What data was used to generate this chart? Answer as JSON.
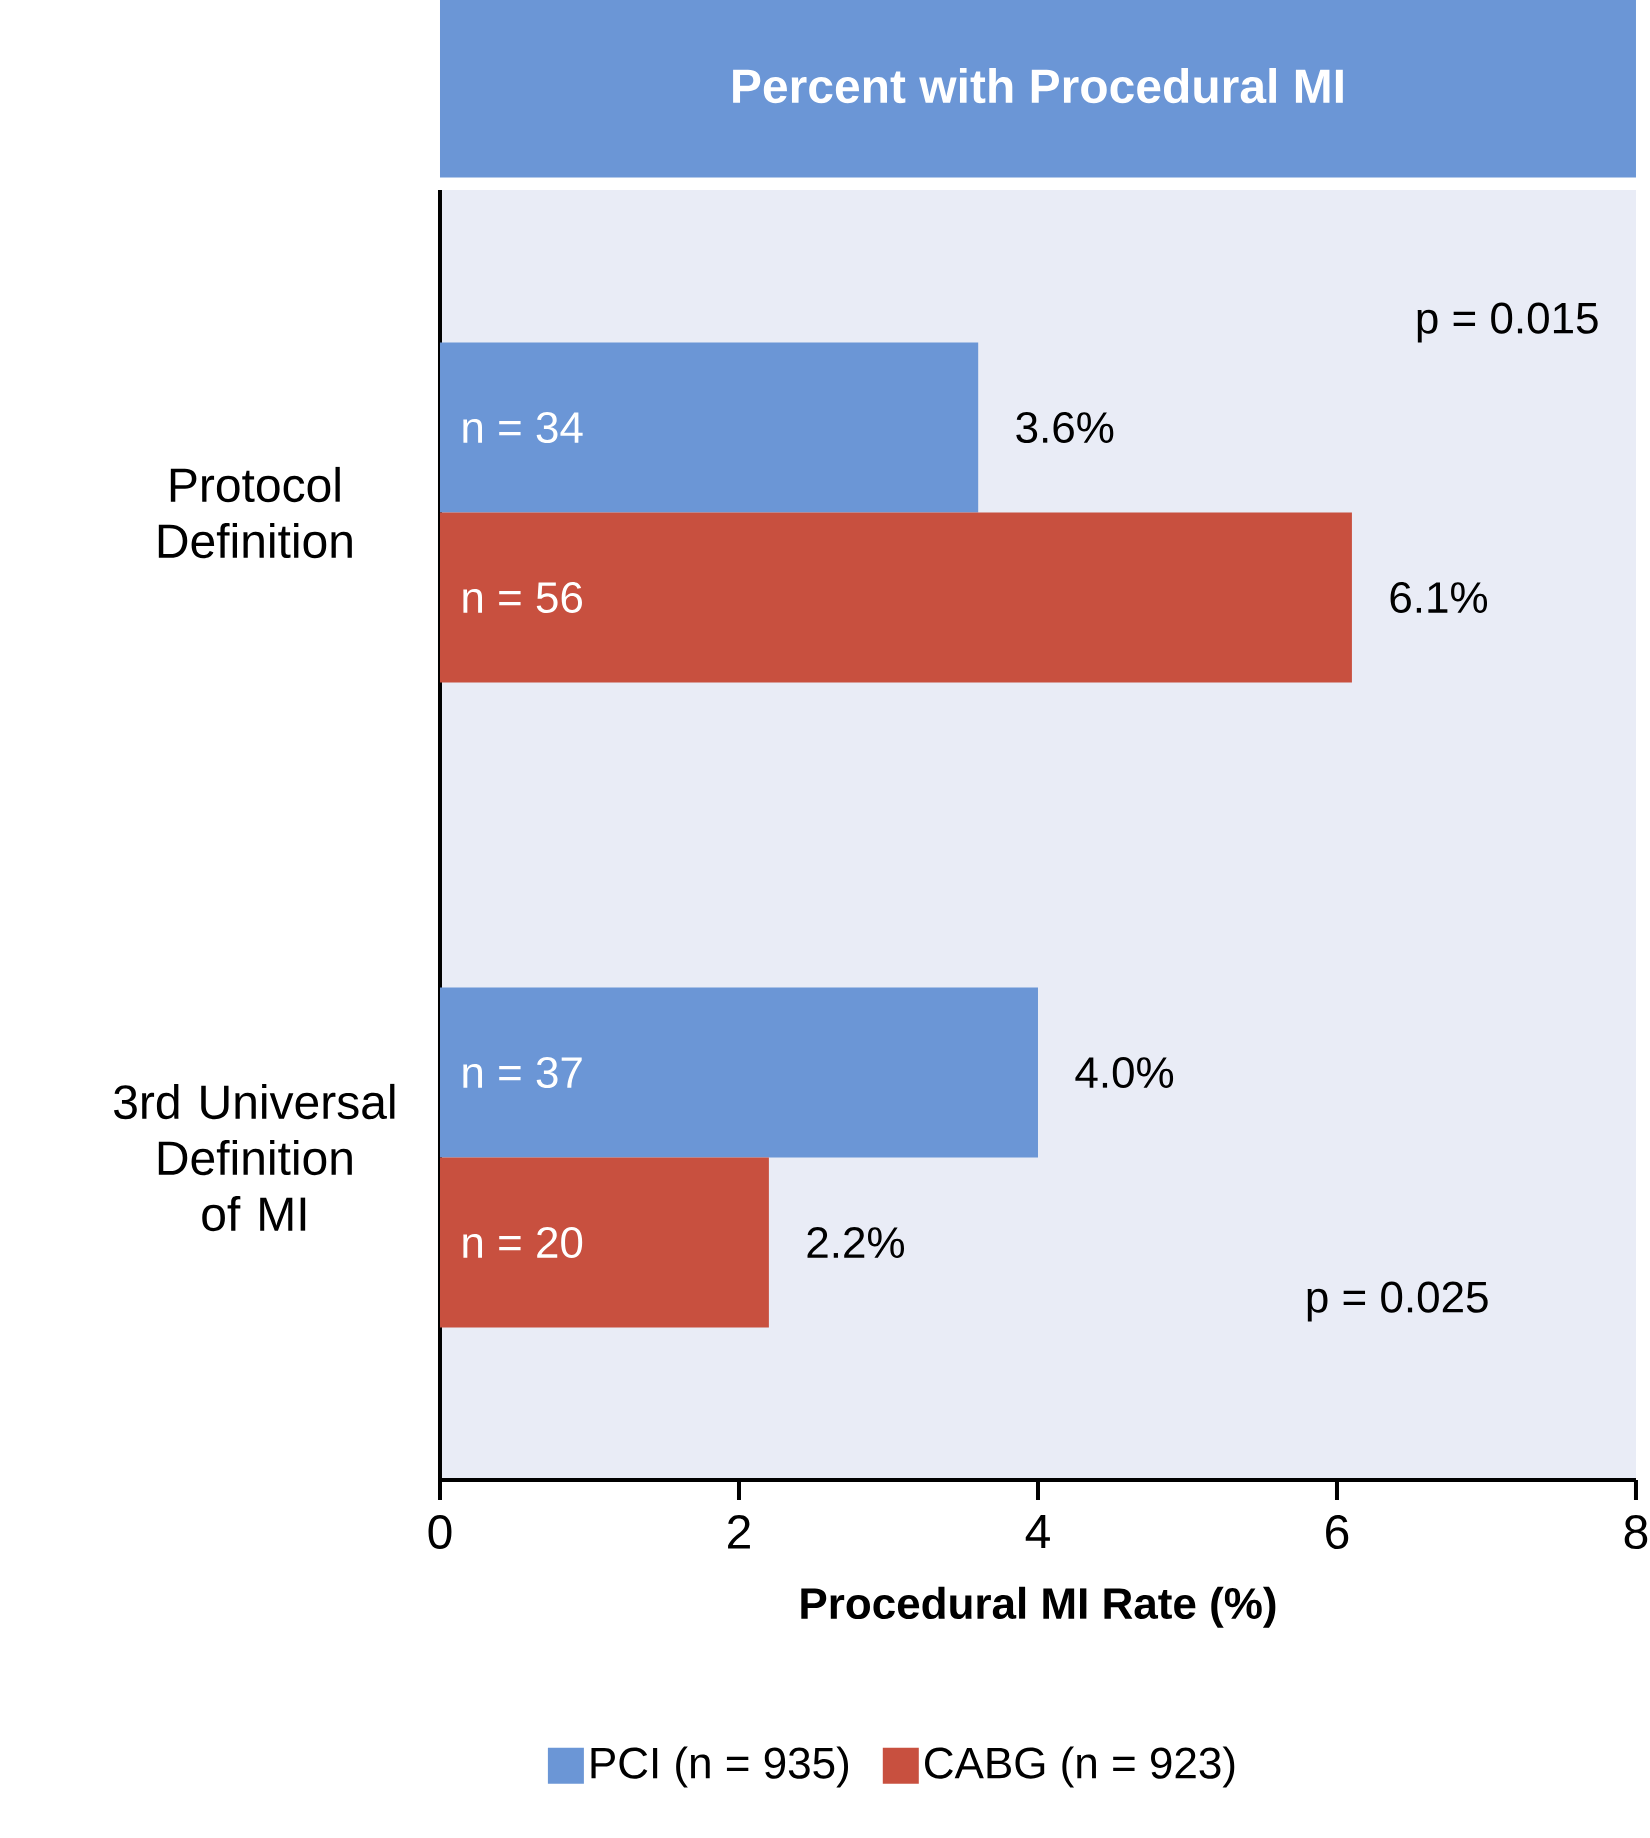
{
  "chart_data": {
    "type": "bar",
    "orientation": "horizontal",
    "title": "Percent with Procedural MI",
    "xlabel": "Procedural MI Rate (%)",
    "categories": [
      "Protocol Definition",
      "3rd Universal Definition of MI"
    ],
    "series": [
      {
        "name": "PCI (n = 935)",
        "color": "#6b96d6",
        "values": [
          3.6,
          4.0
        ],
        "value_labels": [
          "3.6%",
          "4.0%"
        ]
      },
      {
        "name": "CABG (n = 923)",
        "color": "#c8503f",
        "values": [
          6.1,
          2.2
        ],
        "value_labels": [
          "6.1%",
          "2.2%"
        ]
      }
    ],
    "annotations": [
      {
        "text": "n = 34",
        "y": "Protocol Definition"
      },
      {
        "text": "n = 56",
        "y": "Protocol Definition"
      },
      {
        "text": "n = 37",
        "y": "3rd Universal Definition of MI"
      },
      {
        "text": "n = 20",
        "y": "3rd Universal Definition of MI"
      },
      "p = 0.015",
      "p = 0.025"
    ],
    "xlim": [
      0,
      8
    ],
    "xticks": [
      0,
      2,
      4,
      6,
      8
    ],
    "legend": "bottom"
  }
}
